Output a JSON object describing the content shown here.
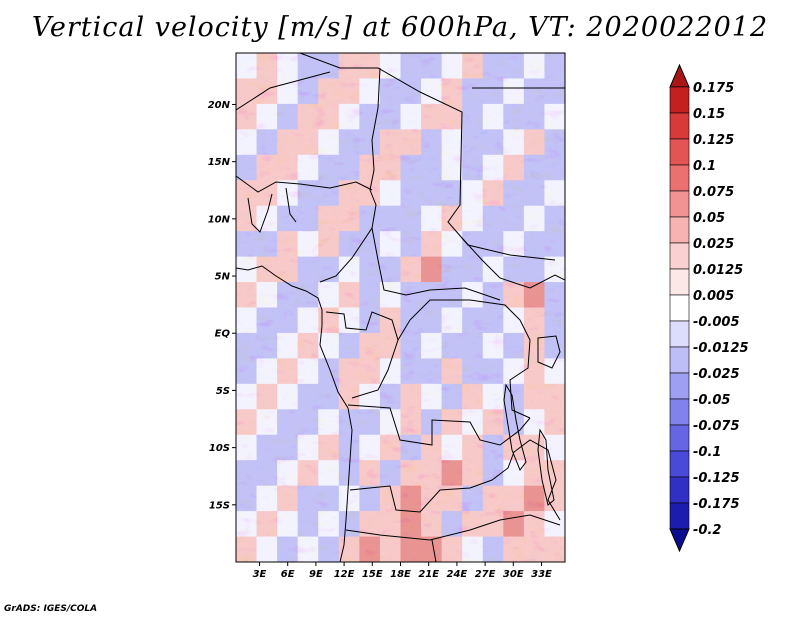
{
  "chart_data": {
    "type": "heatmap",
    "title": "Vertical velocity [m/s] at 600hPa, VT: 2020022012",
    "variable": "Vertical velocity",
    "units": "m/s",
    "level": "600hPa",
    "valid_time": "2020022012",
    "x_ticks": [
      "3E",
      "6E",
      "9E",
      "12E",
      "15E",
      "18E",
      "21E",
      "24E",
      "27E",
      "30E",
      "33E"
    ],
    "x_tick_values": [
      3,
      6,
      9,
      12,
      15,
      18,
      21,
      24,
      27,
      30,
      33
    ],
    "y_ticks": [
      "20N",
      "15N",
      "10N",
      "5N",
      "EQ",
      "5S",
      "10S",
      "15S"
    ],
    "y_tick_values": [
      20,
      15,
      10,
      5,
      0,
      -5,
      -10,
      -15
    ],
    "xlim": [
      0.5,
      35.5
    ],
    "ylim": [
      -20,
      24.5
    ],
    "colorbar": {
      "labels": [
        "0.175",
        "0.15",
        "0.125",
        "0.1",
        "0.075",
        "0.05",
        "0.025",
        "0.0125",
        "0.005",
        "-0.005",
        "-0.0125",
        "-0.025",
        "-0.05",
        "-0.075",
        "-0.1",
        "-0.125",
        "-0.175",
        "-0.2"
      ],
      "colors": [
        "#aa1616",
        "#c52020",
        "#d83a3a",
        "#e35555",
        "#eb7171",
        "#f29393",
        "#f7b2b2",
        "#fad0d0",
        "#fde8e8",
        "#ffffff",
        "#dcdcfc",
        "#bdbdf8",
        "#9e9ef2",
        "#8282ec",
        "#6666e4",
        "#4a4ad8",
        "#3030c4",
        "#1c1cae",
        "#0c0c90"
      ]
    },
    "field_cells": [
      [
        0,
        1,
        0,
        -1,
        -1,
        1,
        1,
        0,
        -1,
        -1,
        0,
        1,
        -1,
        -1,
        0,
        -1
      ],
      [
        1,
        1,
        0,
        -1,
        1,
        1,
        0,
        -1,
        -1,
        0,
        1,
        -1,
        -1,
        0,
        -1,
        -1
      ],
      [
        1,
        0,
        -1,
        1,
        1,
        0,
        -1,
        -1,
        0,
        1,
        1,
        -1,
        0,
        -1,
        -1,
        0
      ],
      [
        0,
        -1,
        1,
        1,
        0,
        -1,
        -1,
        1,
        1,
        -1,
        0,
        -1,
        -1,
        0,
        1,
        -1
      ],
      [
        -1,
        1,
        1,
        0,
        -1,
        -1,
        1,
        1,
        -1,
        -1,
        0,
        -1,
        0,
        1,
        -1,
        -1
      ],
      [
        1,
        1,
        0,
        -1,
        -1,
        1,
        1,
        0,
        -1,
        -1,
        -1,
        0,
        1,
        -1,
        -1,
        0
      ],
      [
        1,
        0,
        -1,
        -1,
        1,
        1,
        -1,
        -1,
        -1,
        0,
        1,
        0,
        -1,
        -1,
        0,
        -1
      ],
      [
        -1,
        -1,
        1,
        0,
        1,
        -1,
        -1,
        0,
        -1,
        1,
        0,
        -1,
        -1,
        0,
        -1,
        -1
      ],
      [
        0,
        1,
        1,
        -1,
        -1,
        0,
        -1,
        -1,
        1,
        2,
        -1,
        -1,
        0,
        -1,
        -1,
        0
      ],
      [
        1,
        0,
        -1,
        -1,
        0,
        1,
        -1,
        0,
        -1,
        -1,
        -1,
        0,
        -1,
        1,
        2,
        -1
      ],
      [
        0,
        -1,
        -1,
        0,
        1,
        0,
        -1,
        1,
        -1,
        -1,
        0,
        -1,
        -1,
        0,
        1,
        -1
      ],
      [
        -1,
        -1,
        0,
        1,
        0,
        -1,
        1,
        1,
        -1,
        0,
        -1,
        -1,
        0,
        -1,
        1,
        -1
      ],
      [
        -1,
        0,
        1,
        0,
        -1,
        1,
        1,
        0,
        -1,
        -1,
        1,
        -1,
        -1,
        0,
        1,
        0
      ],
      [
        0,
        1,
        0,
        -1,
        -1,
        1,
        0,
        -1,
        1,
        0,
        -1,
        1,
        0,
        -1,
        1,
        1
      ],
      [
        1,
        0,
        -1,
        -1,
        0,
        -1,
        -1,
        0,
        1,
        -1,
        1,
        0,
        1,
        -1,
        0,
        1
      ],
      [
        0,
        -1,
        -1,
        0,
        1,
        -1,
        0,
        1,
        -1,
        1,
        0,
        1,
        -1,
        1,
        1,
        0
      ],
      [
        -1,
        -1,
        0,
        1,
        0,
        -1,
        1,
        -1,
        1,
        1,
        2,
        1,
        -1,
        0,
        1,
        1
      ],
      [
        -1,
        0,
        1,
        -1,
        -1,
        0,
        -1,
        1,
        2,
        1,
        1,
        -1,
        1,
        1,
        2,
        1
      ],
      [
        0,
        1,
        0,
        -1,
        0,
        -1,
        1,
        1,
        2,
        1,
        -1,
        1,
        1,
        2,
        1,
        0
      ],
      [
        1,
        0,
        -1,
        0,
        -1,
        1,
        2,
        1,
        2,
        2,
        1,
        0,
        -1,
        1,
        1,
        1
      ]
    ]
  },
  "footer": {
    "credit": "GrADS: IGES/COLA"
  }
}
